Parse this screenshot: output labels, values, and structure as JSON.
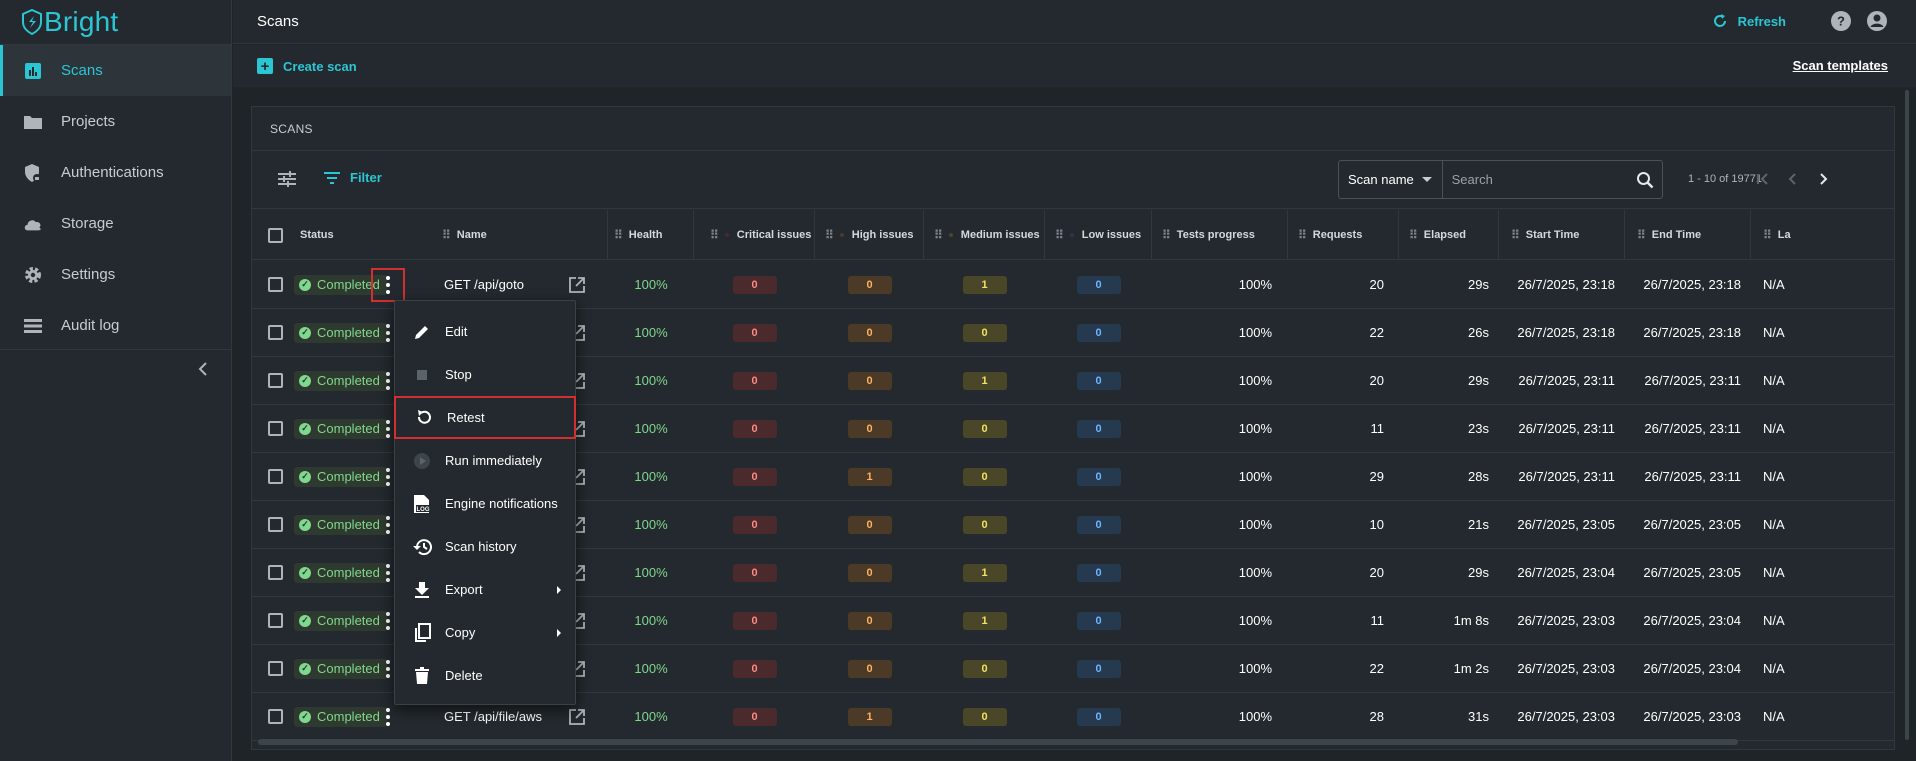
{
  "brand": {
    "name": "Bright",
    "accent": "#2bc6d4"
  },
  "sidebar": {
    "items": [
      {
        "label": "Scans",
        "icon": "chart-icon",
        "active": true
      },
      {
        "label": "Projects",
        "icon": "folder-icon"
      },
      {
        "label": "Authentications",
        "icon": "shield-lock-icon"
      },
      {
        "label": "Storage",
        "icon": "cloud-icon"
      },
      {
        "label": "Settings",
        "icon": "gear-icon"
      },
      {
        "label": "Audit log",
        "icon": "list-icon"
      }
    ],
    "collapse_icon": "chevron-left-icon"
  },
  "header": {
    "title": "Scans",
    "refresh_label": "Refresh",
    "help_icon": "help-icon",
    "account_icon": "account-icon"
  },
  "subbar": {
    "create_label": "Create scan",
    "templates_label": "Scan templates"
  },
  "panel": {
    "title": "SCANS",
    "filter_label": "Filter",
    "search_field": "Scan name",
    "search_placeholder": "Search",
    "pager_text": "1 - 10 of 19771"
  },
  "columns": {
    "status": "Status",
    "name": "Name",
    "health": "Health",
    "critical": "Critical issues",
    "high": "High issues",
    "medium": "Medium issues",
    "low": "Low issues",
    "progress": "Tests progress",
    "requests": "Requests",
    "elapsed": "Elapsed",
    "start": "Start Time",
    "end": "End Time",
    "last": "La"
  },
  "rows": [
    {
      "status": "Completed",
      "name": "GET /api/goto",
      "health": "100%",
      "critical": "0",
      "high": "0",
      "medium": "1",
      "low": "0",
      "progress": "100%",
      "requests": "20",
      "elapsed": "29s",
      "start": "26/7/2025, 23:18",
      "end": "26/7/2025, 23:18",
      "last": "N/A"
    },
    {
      "status": "Completed",
      "name": "",
      "health": "100%",
      "critical": "0",
      "high": "0",
      "medium": "0",
      "low": "0",
      "progress": "100%",
      "requests": "22",
      "elapsed": "26s",
      "start": "26/7/2025, 23:18",
      "end": "26/7/2025, 23:18",
      "last": "N/A"
    },
    {
      "status": "Completed",
      "name": "",
      "health": "100%",
      "critical": "0",
      "high": "0",
      "medium": "1",
      "low": "0",
      "progress": "100%",
      "requests": "20",
      "elapsed": "29s",
      "start": "26/7/2025, 23:11",
      "end": "26/7/2025, 23:11",
      "last": "N/A"
    },
    {
      "status": "Completed",
      "name": "",
      "health": "100%",
      "critical": "0",
      "high": "0",
      "medium": "0",
      "low": "0",
      "progress": "100%",
      "requests": "11",
      "elapsed": "23s",
      "start": "26/7/2025, 23:11",
      "end": "26/7/2025, 23:11",
      "last": "N/A"
    },
    {
      "status": "Completed",
      "name": "",
      "health": "100%",
      "critical": "0",
      "high": "1",
      "medium": "0",
      "low": "0",
      "progress": "100%",
      "requests": "29",
      "elapsed": "28s",
      "start": "26/7/2025, 23:11",
      "end": "26/7/2025, 23:11",
      "last": "N/A"
    },
    {
      "status": "Completed",
      "name": "",
      "health": "100%",
      "critical": "0",
      "high": "0",
      "medium": "0",
      "low": "0",
      "progress": "100%",
      "requests": "10",
      "elapsed": "21s",
      "start": "26/7/2025, 23:05",
      "end": "26/7/2025, 23:05",
      "last": "N/A"
    },
    {
      "status": "Completed",
      "name": "",
      "health": "100%",
      "critical": "0",
      "high": "0",
      "medium": "1",
      "low": "0",
      "progress": "100%",
      "requests": "20",
      "elapsed": "29s",
      "start": "26/7/2025, 23:04",
      "end": "26/7/2025, 23:05",
      "last": "N/A"
    },
    {
      "status": "Completed",
      "name": "",
      "health": "100%",
      "critical": "0",
      "high": "0",
      "medium": "1",
      "low": "0",
      "progress": "100%",
      "requests": "11",
      "elapsed": "1m 8s",
      "start": "26/7/2025, 23:03",
      "end": "26/7/2025, 23:04",
      "last": "N/A"
    },
    {
      "status": "Completed",
      "name": "",
      "health": "100%",
      "critical": "0",
      "high": "0",
      "medium": "0",
      "low": "0",
      "progress": "100%",
      "requests": "22",
      "elapsed": "1m 2s",
      "start": "26/7/2025, 23:03",
      "end": "26/7/2025, 23:04",
      "last": "N/A"
    },
    {
      "status": "Completed",
      "name": "GET /api/file/aws",
      "health": "100%",
      "critical": "0",
      "high": "1",
      "medium": "0",
      "low": "0",
      "progress": "100%",
      "requests": "28",
      "elapsed": "31s",
      "start": "26/7/2025, 23:03",
      "end": "26/7/2025, 23:03",
      "last": "N/A"
    }
  ],
  "context_menu": {
    "items": [
      {
        "label": "Edit",
        "icon": "pencil-icon"
      },
      {
        "label": "Stop",
        "icon": "stop-icon"
      },
      {
        "label": "Retest",
        "icon": "retest-icon",
        "highlighted": true
      },
      {
        "label": "Run immediately",
        "icon": "play-icon"
      },
      {
        "label": "Engine notifications",
        "icon": "log-icon"
      },
      {
        "label": "Scan history",
        "icon": "history-icon"
      },
      {
        "label": "Export",
        "icon": "download-icon",
        "submenu": true
      },
      {
        "label": "Copy",
        "icon": "copy-icon",
        "submenu": true
      },
      {
        "label": "Delete",
        "icon": "trash-icon"
      }
    ]
  },
  "colors": {
    "completed": "#7fd88b",
    "critical": "#ff8a80",
    "high": "#ffb060",
    "medium": "#f2e261",
    "low": "#6fb2ff",
    "highlight_border": "#d22f2f"
  }
}
